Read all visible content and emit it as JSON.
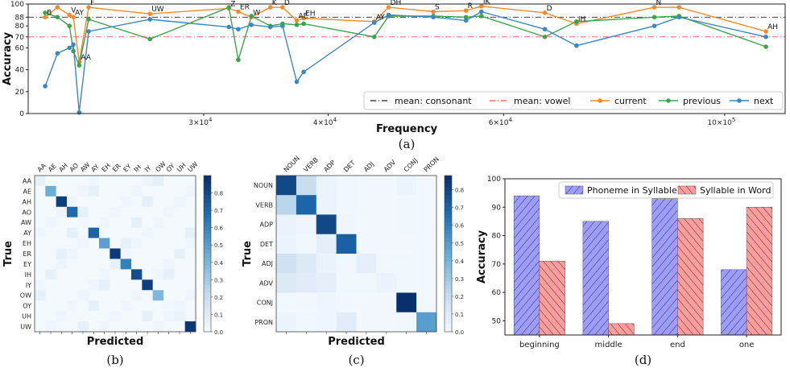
{
  "chart_data": [
    {
      "type": "line",
      "caption": "(a)",
      "xlabel": "Frequency",
      "ylabel": "Accuracy",
      "x_scale": "log",
      "xlim": [
        20000,
        115000
      ],
      "ylim": [
        0,
        100
      ],
      "x_ticks": [
        {
          "value": 30000,
          "base": "3",
          "exp": "4"
        },
        {
          "value": 40000,
          "base": "4",
          "exp": "4"
        },
        {
          "value": 60000,
          "base": "6",
          "exp": "4"
        },
        {
          "value": 100000,
          "base": "10",
          "exp": "5"
        }
      ],
      "y_ticks": [
        0,
        20,
        40,
        60,
        70,
        80,
        88,
        100
      ],
      "reference_lines": [
        {
          "name": "mean: consonant",
          "value": 88,
          "color": "#444444",
          "style": "dashdot"
        },
        {
          "name": "mean: vowel",
          "value": 70,
          "color": "#ff6b6b",
          "style": "dashdot"
        }
      ],
      "series": [
        {
          "name": "current",
          "color": "#f58a2c"
        },
        {
          "name": "previous",
          "color": "#3fa34d"
        },
        {
          "name": "next",
          "color": "#3c86c1"
        }
      ],
      "points": [
        {
          "label": "B",
          "x": 20800,
          "current": 88,
          "previous": 92,
          "next": 25
        },
        {
          "label": "",
          "x": 21400,
          "current": 97,
          "previous": 88,
          "next": 55
        },
        {
          "label": "V",
          "x": 22000,
          "current": 90,
          "previous": 80,
          "next": 60
        },
        {
          "label": "AY",
          "x": 22200,
          "current": 88,
          "previous": 57,
          "next": 63
        },
        {
          "label": "AA",
          "x": 22500,
          "current": 47,
          "previous": 44,
          "next": 1
        },
        {
          "label": "F",
          "x": 23000,
          "current": 97,
          "previous": 86,
          "next": 75
        },
        {
          "label": "UW",
          "x": 26500,
          "current": 91,
          "previous": 68,
          "next": 86
        },
        {
          "label": "Z",
          "x": 31800,
          "current": 96,
          "previous": 97,
          "next": 79
        },
        {
          "label": "ER",
          "x": 32500,
          "current": 93,
          "previous": 49,
          "next": 77
        },
        {
          "label": "W",
          "x": 33500,
          "current": 88,
          "previous": 89,
          "next": 81
        },
        {
          "label": "K",
          "x": 35000,
          "current": 97,
          "previous": 80,
          "next": 79
        },
        {
          "label": "D",
          "x": 36000,
          "current": 97,
          "previous": 82,
          "next": 80
        },
        {
          "label": "AE",
          "x": 37200,
          "current": 85,
          "previous": 81,
          "next": 29
        },
        {
          "label": "EH",
          "x": 37800,
          "current": 87,
          "previous": 82,
          "next": 38
        },
        {
          "label": "AY",
          "x": 44500,
          "current": 84,
          "previous": 70,
          "next": 83
        },
        {
          "label": "DH",
          "x": 46000,
          "current": 97,
          "previous": 89,
          "next": 90
        },
        {
          "label": "S",
          "x": 51000,
          "current": 93,
          "previous": 89,
          "next": 88
        },
        {
          "label": "R",
          "x": 55000,
          "current": 94,
          "previous": 88,
          "next": 85
        },
        {
          "label": "IK",
          "x": 57000,
          "current": 98,
          "previous": 89,
          "next": 93
        },
        {
          "label": "D",
          "x": 66000,
          "current": 92,
          "previous": 70,
          "next": 77
        },
        {
          "label": "IH",
          "x": 71000,
          "current": 82,
          "previous": 84,
          "next": 62
        },
        {
          "label": "N",
          "x": 85000,
          "current": 97,
          "previous": 88,
          "next": 80
        },
        {
          "label": "",
          "x": 90000,
          "current": 97,
          "previous": 89,
          "next": 88
        },
        {
          "label": "AH",
          "x": 110000,
          "current": 75,
          "previous": 61,
          "next": 70
        }
      ]
    },
    {
      "type": "heatmap",
      "caption": "(b)",
      "xlabel": "Predicted",
      "ylabel": "True",
      "labels": [
        "AA",
        "AE",
        "AH",
        "AO",
        "AW",
        "AY",
        "EH",
        "ER",
        "EY",
        "IH",
        "IY",
        "OW",
        "OY",
        "UH",
        "UW"
      ],
      "colorbar_ticks": [
        "0.0",
        "0.1",
        "0.2",
        "0.3",
        "0.4",
        "0.5",
        "0.6",
        "0.7",
        "0.8"
      ],
      "vmax": 0.9,
      "diagonal": [
        0.08,
        0.45,
        0.85,
        0.7,
        0.02,
        0.72,
        0.5,
        0.86,
        0.62,
        0.8,
        0.85,
        0.4,
        0.02,
        0.05,
        0.88
      ]
    },
    {
      "type": "heatmap",
      "caption": "(c)",
      "xlabel": "Predicted",
      "ylabel": "True",
      "labels": [
        "NOUN",
        "VERB",
        "ADP",
        "DET",
        "ADJ",
        "ADV",
        "CONJ",
        "PRON"
      ],
      "colorbar_ticks": [
        "0.0",
        "0.1",
        "0.2",
        "0.3",
        "0.4",
        "0.5",
        "0.6",
        "0.7",
        "0.8"
      ],
      "vmax": 0.88,
      "matrix": [
        [
          0.8,
          0.2,
          0.05,
          0.03,
          0.02,
          0.02,
          0.05,
          0.02
        ],
        [
          0.25,
          0.7,
          0.05,
          0.03,
          0.02,
          0.02,
          0.03,
          0.02
        ],
        [
          0.06,
          0.04,
          0.8,
          0.04,
          0.02,
          0.02,
          0.03,
          0.02
        ],
        [
          0.05,
          0.03,
          0.08,
          0.72,
          0.02,
          0.02,
          0.02,
          0.02
        ],
        [
          0.18,
          0.12,
          0.06,
          0.03,
          0.08,
          0.03,
          0.03,
          0.02
        ],
        [
          0.12,
          0.1,
          0.08,
          0.03,
          0.03,
          0.06,
          0.03,
          0.02
        ],
        [
          0.03,
          0.02,
          0.04,
          0.02,
          0.02,
          0.02,
          0.88,
          0.02
        ],
        [
          0.05,
          0.03,
          0.04,
          0.1,
          0.02,
          0.02,
          0.03,
          0.5
        ]
      ]
    },
    {
      "type": "bar",
      "caption": "(d)",
      "ylabel": "Accuracy",
      "ylim": [
        45,
        100
      ],
      "y_ticks": [
        50,
        60,
        70,
        80,
        90,
        100
      ],
      "categories": [
        "beginning",
        "middle",
        "end",
        "one"
      ],
      "series": [
        {
          "name": "Phoneme in Syllable",
          "values": [
            94,
            85,
            93,
            68
          ],
          "color": "#8888ff"
        },
        {
          "name": "Syllable in Word",
          "values": [
            71,
            49,
            86,
            90
          ],
          "color": "#ff8888"
        }
      ]
    }
  ]
}
